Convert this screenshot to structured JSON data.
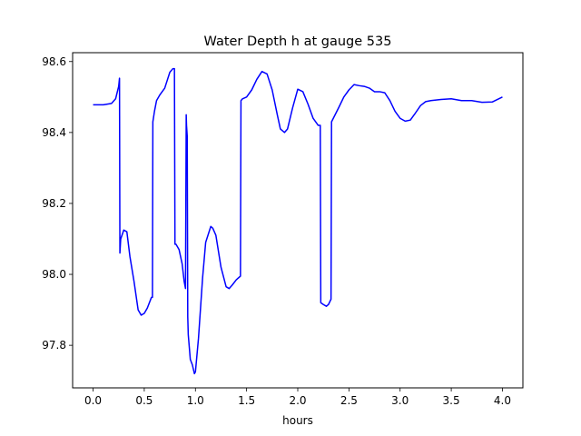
{
  "chart_data": {
    "type": "line",
    "title": "Water Depth h at gauge 535",
    "xlabel": "hours",
    "ylabel": "",
    "xlim": [
      -0.2,
      4.2
    ],
    "ylim": [
      97.68,
      98.625
    ],
    "x_ticks": [
      0.0,
      0.5,
      1.0,
      1.5,
      2.0,
      2.5,
      3.0,
      3.5,
      4.0
    ],
    "x_tick_labels": [
      "0.0",
      "0.5",
      "1.0",
      "1.5",
      "2.0",
      "2.5",
      "3.0",
      "3.5",
      "4.0"
    ],
    "y_ticks": [
      97.8,
      98.0,
      98.2,
      98.4,
      98.6
    ],
    "y_tick_labels": [
      "97.8",
      "98.0",
      "98.2",
      "98.4",
      "98.6"
    ],
    "grid": false,
    "legend": "none",
    "series": [
      {
        "color": "#0000ff",
        "x": [
          0.0,
          0.1,
          0.18,
          0.22,
          0.25,
          0.258,
          0.262,
          0.27,
          0.3,
          0.33,
          0.36,
          0.4,
          0.44,
          0.47,
          0.5,
          0.53,
          0.57,
          0.58,
          0.584,
          0.6,
          0.62,
          0.65,
          0.7,
          0.75,
          0.78,
          0.795,
          0.8,
          0.81,
          0.84,
          0.87,
          0.89,
          0.903,
          0.91,
          0.913,
          0.92,
          0.925,
          0.93,
          0.95,
          0.97,
          0.99,
          1.0,
          1.03,
          1.07,
          1.1,
          1.15,
          1.17,
          1.2,
          1.25,
          1.3,
          1.33,
          1.36,
          1.4,
          1.44,
          1.445,
          1.46,
          1.5,
          1.55,
          1.6,
          1.65,
          1.7,
          1.75,
          1.8,
          1.83,
          1.87,
          1.9,
          1.95,
          2.0,
          2.05,
          2.1,
          2.15,
          2.2,
          2.22,
          2.225,
          2.25,
          2.28,
          2.3,
          2.325,
          2.33,
          2.4,
          2.45,
          2.5,
          2.55,
          2.6,
          2.65,
          2.7,
          2.75,
          2.8,
          2.85,
          2.9,
          2.95,
          3.0,
          3.05,
          3.1,
          3.15,
          3.2,
          3.25,
          3.3,
          3.4,
          3.5,
          3.6,
          3.7,
          3.8,
          3.9,
          4.0
        ],
        "y": [
          98.478,
          98.478,
          98.482,
          98.495,
          98.53,
          98.553,
          98.06,
          98.1,
          98.125,
          98.12,
          98.05,
          97.98,
          97.9,
          97.885,
          97.89,
          97.905,
          97.935,
          97.935,
          98.43,
          98.46,
          98.49,
          98.505,
          98.525,
          98.57,
          98.58,
          98.58,
          98.085,
          98.085,
          98.07,
          98.03,
          97.98,
          97.96,
          98.45,
          98.42,
          98.39,
          97.88,
          97.83,
          97.76,
          97.745,
          97.72,
          97.725,
          97.82,
          97.99,
          98.09,
          98.135,
          98.13,
          98.11,
          98.02,
          97.965,
          97.96,
          97.97,
          97.985,
          97.995,
          98.49,
          98.495,
          98.5,
          98.52,
          98.55,
          98.572,
          98.565,
          98.52,
          98.45,
          98.41,
          98.4,
          98.41,
          98.47,
          98.522,
          98.515,
          98.48,
          98.44,
          98.42,
          98.42,
          97.92,
          97.915,
          97.91,
          97.915,
          97.93,
          98.43,
          98.47,
          98.5,
          98.52,
          98.535,
          98.532,
          98.53,
          98.525,
          98.515,
          98.515,
          98.512,
          98.49,
          98.46,
          98.44,
          98.432,
          98.435,
          98.455,
          98.476,
          98.487,
          98.49,
          98.493,
          98.495,
          98.49,
          98.49,
          98.485,
          98.486,
          98.5
        ]
      }
    ]
  }
}
